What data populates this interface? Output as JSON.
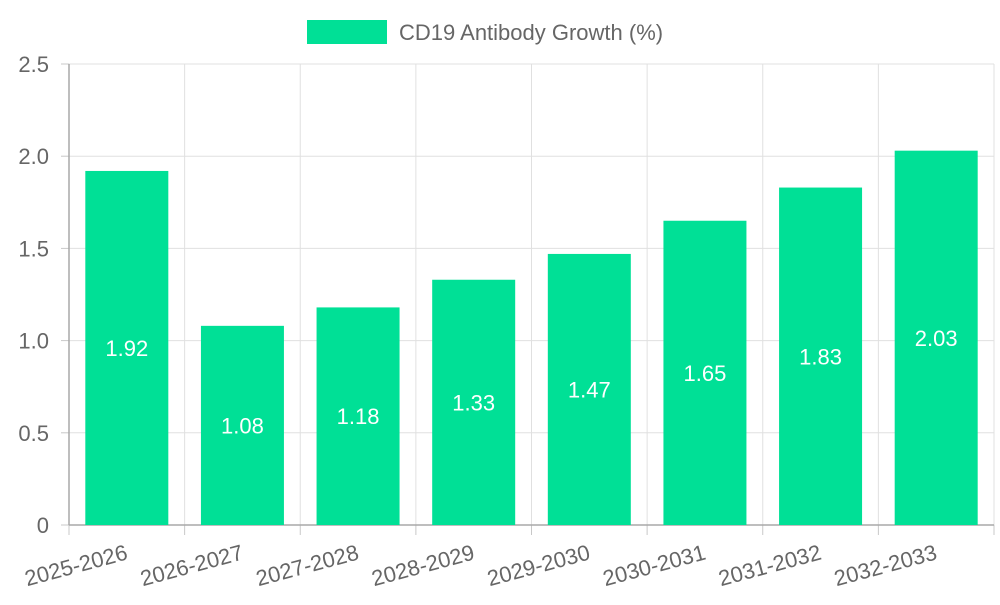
{
  "chart_data": {
    "type": "bar",
    "title": "",
    "xlabel": "",
    "ylabel": "",
    "categories": [
      "2025-2026",
      "2026-2027",
      "2027-2028",
      "2028-2029",
      "2029-2030",
      "2030-2031",
      "2031-2032",
      "2032-2033"
    ],
    "series": [
      {
        "name": "CD19 Antibody Growth (%)",
        "values": [
          1.92,
          1.08,
          1.18,
          1.33,
          1.47,
          1.65,
          1.83,
          2.03
        ],
        "color": "#00e096"
      }
    ],
    "data_labels": [
      "1.92",
      "1.08",
      "1.18",
      "1.33",
      "1.47",
      "1.65",
      "1.83",
      "2.03"
    ],
    "y_ticks": [
      "0",
      "0.5",
      "1.0",
      "1.5",
      "2.0",
      "2.5"
    ],
    "ylim": [
      0,
      2.5
    ],
    "grid": true,
    "legend_position": "top-center",
    "x_tick_rotation": "slanted"
  }
}
